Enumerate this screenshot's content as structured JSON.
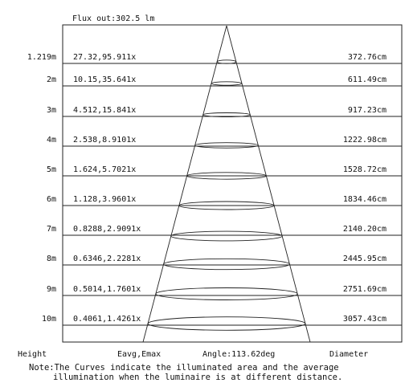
{
  "flux_label": "Flux out:302.5 lm",
  "footer": {
    "height": "Height",
    "eavg": "Eavg,Emax",
    "angle": "Angle:113.62deg",
    "diameter": "Diameter"
  },
  "note": {
    "label": "Note:",
    "line1": "The Curves indicate the illuminated area and the average",
    "line2": "illumination when the luminaire is at different distance."
  },
  "rows": [
    {
      "height": "1.219m",
      "illum": "27.32,95.911x",
      "diameter": "372.76cm"
    },
    {
      "height": "2m",
      "illum": "10.15,35.641x",
      "diameter": "611.49cm"
    },
    {
      "height": "3m",
      "illum": "4.512,15.841x",
      "diameter": "917.23cm"
    },
    {
      "height": "4m",
      "illum": "2.538,8.9101x",
      "diameter": "1222.98cm"
    },
    {
      "height": "5m",
      "illum": "1.624,5.7021x",
      "diameter": "1528.72cm"
    },
    {
      "height": "6m",
      "illum": "1.128,3.9601x",
      "diameter": "1834.46cm"
    },
    {
      "height": "7m",
      "illum": "0.8288,2.9091x",
      "diameter": "2140.20cm"
    },
    {
      "height": "8m",
      "illum": "0.6346,2.2281x",
      "diameter": "2445.95cm"
    },
    {
      "height": "9m",
      "illum": "0.5014,1.7601x",
      "diameter": "2751.69cm"
    },
    {
      "height": "10m",
      "illum": "0.4061,1.4261x",
      "diameter": "3057.43cm"
    }
  ]
}
